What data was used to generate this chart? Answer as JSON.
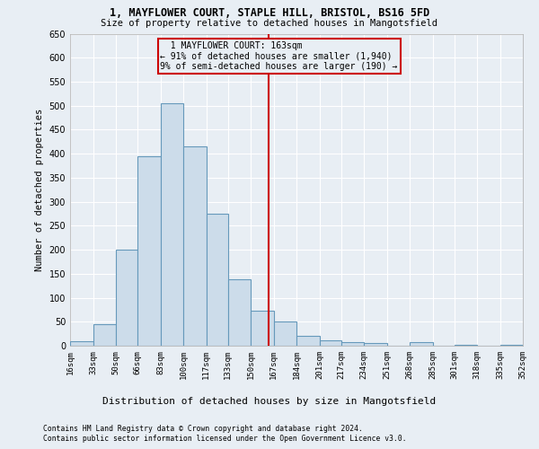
{
  "title1": "1, MAYFLOWER COURT, STAPLE HILL, BRISTOL, BS16 5FD",
  "title2": "Size of property relative to detached houses in Mangotsfield",
  "xlabel": "Distribution of detached houses by size in Mangotsfield",
  "ylabel": "Number of detached properties",
  "bin_edges": [
    16,
    33,
    50,
    66,
    83,
    100,
    117,
    133,
    150,
    167,
    184,
    201,
    217,
    234,
    251,
    268,
    285,
    301,
    318,
    335,
    352
  ],
  "bar_heights": [
    10,
    45,
    200,
    395,
    505,
    415,
    275,
    138,
    73,
    51,
    20,
    11,
    8,
    6,
    0,
    7,
    0,
    2,
    0,
    2
  ],
  "bar_color": "#ccdcea",
  "bar_edge_color": "#6699bb",
  "vline_x": 163,
  "vline_color": "#cc0000",
  "annotation_text": "  1 MAYFLOWER COURT: 163sqm  \n← 91% of detached houses are smaller (1,940)\n9% of semi-detached houses are larger (190) →",
  "annotation_box_color": "#cc0000",
  "ylim": [
    0,
    650
  ],
  "yticks": [
    0,
    50,
    100,
    150,
    200,
    250,
    300,
    350,
    400,
    450,
    500,
    550,
    600,
    650
  ],
  "footnote1": "Contains HM Land Registry data © Crown copyright and database right 2024.",
  "footnote2": "Contains public sector information licensed under the Open Government Licence v3.0.",
  "bg_color": "#e8eef4",
  "grid_color": "#ffffff"
}
